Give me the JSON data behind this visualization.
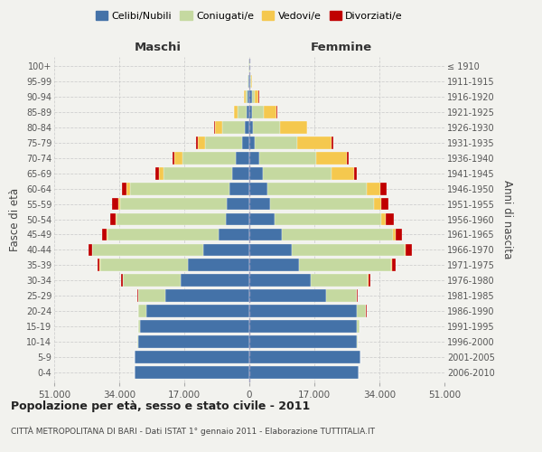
{
  "age_groups": [
    "0-4",
    "5-9",
    "10-14",
    "15-19",
    "20-24",
    "25-29",
    "30-34",
    "35-39",
    "40-44",
    "45-49",
    "50-54",
    "55-59",
    "60-64",
    "65-69",
    "70-74",
    "75-79",
    "80-84",
    "85-89",
    "90-94",
    "95-99",
    "100+"
  ],
  "birth_years": [
    "2006-2010",
    "2001-2005",
    "1996-2000",
    "1991-1995",
    "1986-1990",
    "1981-1985",
    "1976-1980",
    "1971-1975",
    "1966-1970",
    "1961-1965",
    "1956-1960",
    "1951-1955",
    "1946-1950",
    "1941-1945",
    "1936-1940",
    "1931-1935",
    "1926-1930",
    "1921-1925",
    "1916-1920",
    "1911-1915",
    "≤ 1910"
  ],
  "males": {
    "celibi": [
      30000,
      30000,
      29000,
      28500,
      27000,
      22000,
      18000,
      16000,
      12000,
      8000,
      6200,
      5800,
      5200,
      4500,
      3500,
      2000,
      1200,
      600,
      400,
      200,
      100
    ],
    "coniugati": [
      25,
      80,
      200,
      600,
      2000,
      7000,
      15000,
      23000,
      29000,
      29000,
      28500,
      28000,
      26000,
      18000,
      14000,
      9500,
      6000,
      2500,
      600,
      200,
      50
    ],
    "vedovi": [
      2,
      3,
      5,
      10,
      20,
      30,
      50,
      80,
      100,
      200,
      300,
      500,
      800,
      1200,
      2000,
      2000,
      1800,
      800,
      300,
      100,
      30
    ],
    "divorziati": [
      2,
      5,
      10,
      20,
      50,
      150,
      400,
      700,
      1000,
      1300,
      1400,
      1600,
      1400,
      800,
      600,
      400,
      300,
      150,
      80,
      30,
      10
    ]
  },
  "females": {
    "nubili": [
      28500,
      29000,
      28000,
      28000,
      28000,
      20000,
      16000,
      13000,
      11000,
      8500,
      6500,
      5500,
      4800,
      3500,
      2500,
      1500,
      1000,
      700,
      600,
      250,
      80
    ],
    "coniugate": [
      35,
      100,
      250,
      800,
      2500,
      8000,
      15000,
      24000,
      29500,
      29000,
      28000,
      27000,
      26000,
      18000,
      15000,
      11000,
      7000,
      3000,
      800,
      200,
      50
    ],
    "vedove": [
      2,
      4,
      8,
      15,
      30,
      50,
      100,
      200,
      400,
      700,
      1200,
      2000,
      3500,
      6000,
      8000,
      9000,
      7000,
      3500,
      1000,
      300,
      80
    ],
    "divorziate": [
      2,
      5,
      10,
      30,
      80,
      200,
      500,
      1000,
      1500,
      1800,
      2000,
      1800,
      1500,
      700,
      500,
      400,
      200,
      100,
      80,
      30,
      10
    ]
  },
  "colors": {
    "celibi": "#4472a8",
    "coniugati": "#c5d9a0",
    "vedovi": "#f5c84e",
    "divorziati": "#c00000"
  },
  "xlim": 51000,
  "xtick_labels": [
    "51.000",
    "34.000",
    "17.000",
    "0",
    "17.000",
    "34.000",
    "51.000"
  ],
  "title1": "Popolazione per età, sesso e stato civile - 2011",
  "title2": "CITTÀ METROPOLITANA DI BARI - Dati ISTAT 1° gennaio 2011 - Elaborazione TUTTITALIA.IT",
  "legend_labels": [
    "Celibi/Nubili",
    "Coniugati/e",
    "Vedovi/e",
    "Divorziati/e"
  ],
  "ylabel_left": "Fasce di età",
  "ylabel_right": "Anni di nascita",
  "label_maschi": "Maschi",
  "label_femmine": "Femmine",
  "background_color": "#f2f2ee",
  "bar_height": 0.82
}
